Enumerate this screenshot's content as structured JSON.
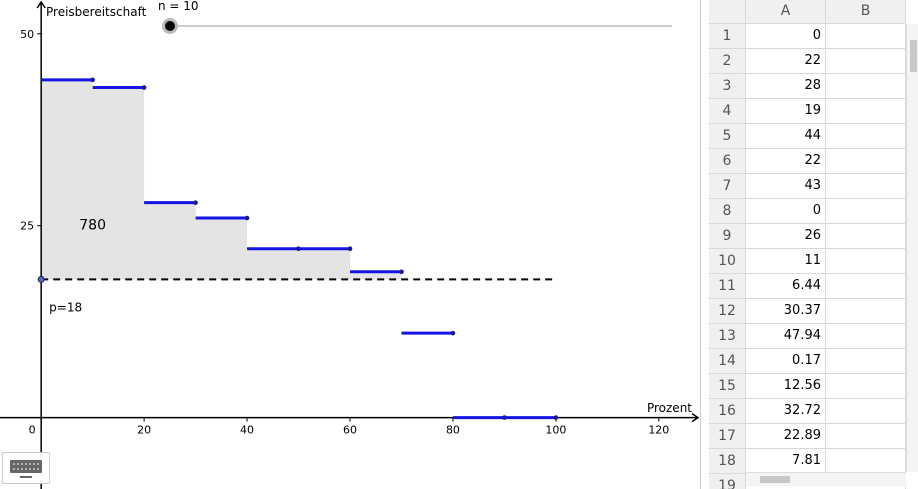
{
  "graphics": {
    "y_axis_label": "Preisbereitschaft",
    "x_axis_label": "Prozent",
    "slider_label": "n = 10",
    "area_label": "780",
    "price_label": "p=18",
    "price": 18,
    "xlim": [
      -8,
      128
    ],
    "ylim": [
      -9.3,
      54.4
    ],
    "xticks": [
      0,
      20,
      40,
      60,
      80,
      100,
      120
    ],
    "yticks": [
      25,
      50
    ],
    "bins": [
      0,
      10,
      20,
      30,
      40,
      50,
      60,
      70,
      80,
      90,
      100
    ],
    "values": [
      44,
      43,
      28,
      26,
      22,
      22,
      19,
      11,
      0,
      0
    ],
    "step_color": "#1414e6",
    "shade_color": "#e4e4e4"
  },
  "spreadsheet": {
    "columns": [
      "A",
      "B"
    ],
    "row_numbers": [
      1,
      2,
      3,
      4,
      5,
      6,
      7,
      8,
      9,
      10,
      11,
      12,
      13,
      14,
      15,
      16,
      17,
      18,
      19
    ],
    "A": [
      0,
      22,
      28,
      19,
      44,
      22,
      43,
      0,
      26,
      11,
      6.44,
      30.37,
      47.94,
      0.17,
      12.56,
      32.72,
      22.89,
      7.81
    ]
  }
}
